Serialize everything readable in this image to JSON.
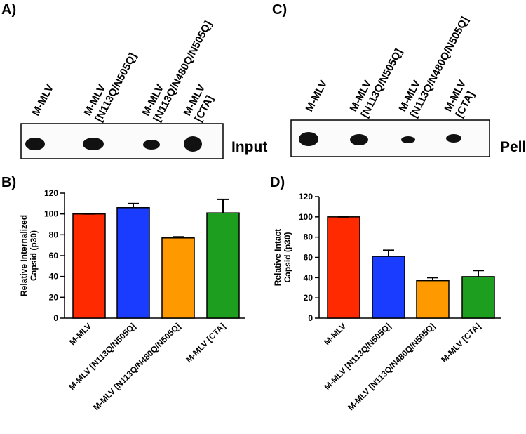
{
  "blots": [
    {
      "panel": "A)",
      "label": "Input",
      "lanes": [
        [
          "M-MLV"
        ],
        [
          "M-MLV",
          "[N113Q/N505Q]"
        ],
        [
          "M-MLV",
          "[N113Q/N480Q/N505Q]"
        ],
        [
          "M-MLV",
          "[CTA]"
        ]
      ]
    },
    {
      "panel": "C)",
      "label": "Pellet",
      "lanes": [
        [
          "M-MLV"
        ],
        [
          "M-MLV",
          "[N113Q/N505Q]"
        ],
        [
          "M-MLV",
          "[N113Q/N480Q/N505Q]"
        ],
        [
          "M-MLV",
          "[CTA]"
        ]
      ]
    }
  ],
  "chart_data": [
    {
      "type": "bar",
      "panel": "B)",
      "y_label": [
        "Relative Internalized",
        "Capsid (p30)"
      ],
      "categories": [
        "M-MLV",
        "M-MLV [N113Q/N505Q]",
        "M-MLV [N113Q/N480Q/N505Q]",
        "M-MLV [CTA]"
      ],
      "values": [
        100,
        106,
        77,
        101
      ],
      "errors": [
        0,
        4,
        1,
        13
      ],
      "colors": [
        "#ff2a00",
        "#1a3cff",
        "#ff9900",
        "#1e9e1e"
      ],
      "ylim": [
        0,
        120
      ],
      "yticks": [
        0,
        20,
        40,
        60,
        80,
        100,
        120
      ]
    },
    {
      "type": "bar",
      "panel": "D)",
      "y_label": [
        "Relative Intact",
        "Capsid (p30)"
      ],
      "categories": [
        "M-MLV",
        "M-MLV [N113Q/N505Q]",
        "M-MLV [N113Q/N480Q/N505Q]",
        "M-MLV [CTA]"
      ],
      "values": [
        100,
        61,
        37,
        41
      ],
      "errors": [
        0,
        6,
        3,
        6
      ],
      "colors": [
        "#ff2a00",
        "#1a3cff",
        "#ff9900",
        "#1e9e1e"
      ],
      "ylim": [
        0,
        120
      ],
      "yticks": [
        0,
        20,
        40,
        60,
        80,
        100,
        120
      ]
    }
  ]
}
